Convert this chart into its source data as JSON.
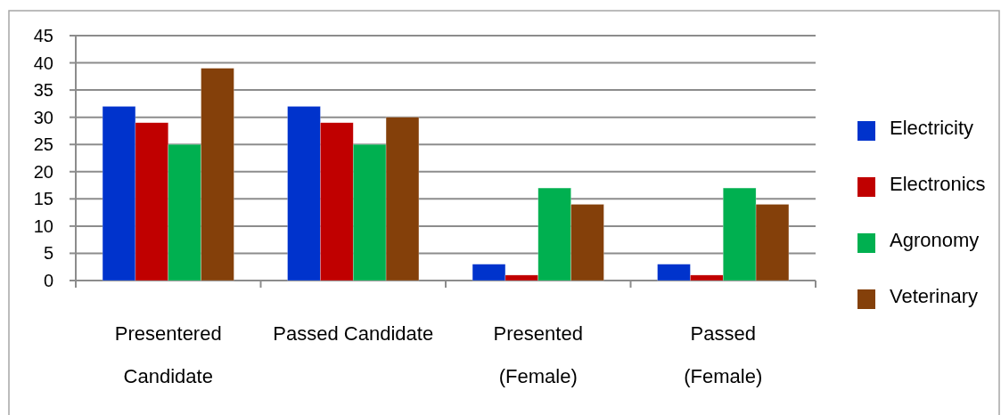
{
  "chart_data": {
    "type": "bar",
    "categories": [
      "Presentered\nCandidate",
      "Passed Candidate",
      "Presented\n(Female)",
      "Passed\n(Female)"
    ],
    "series": [
      {
        "name": "Electricity",
        "color": "#0033cc",
        "values": [
          32,
          32,
          3,
          3
        ]
      },
      {
        "name": "Electronics",
        "color": "#c00000",
        "values": [
          29,
          29,
          1,
          1
        ]
      },
      {
        "name": "Agronomy",
        "color": "#00b050",
        "values": [
          25,
          25,
          17,
          17
        ]
      },
      {
        "name": "Veterinary",
        "color": "#84400a",
        "values": [
          39,
          30,
          14,
          14
        ]
      }
    ],
    "ylim": [
      0,
      45
    ],
    "yticks": [
      0,
      5,
      10,
      15,
      20,
      25,
      30,
      35,
      40,
      45
    ],
    "grid": "y",
    "legend": "right"
  }
}
